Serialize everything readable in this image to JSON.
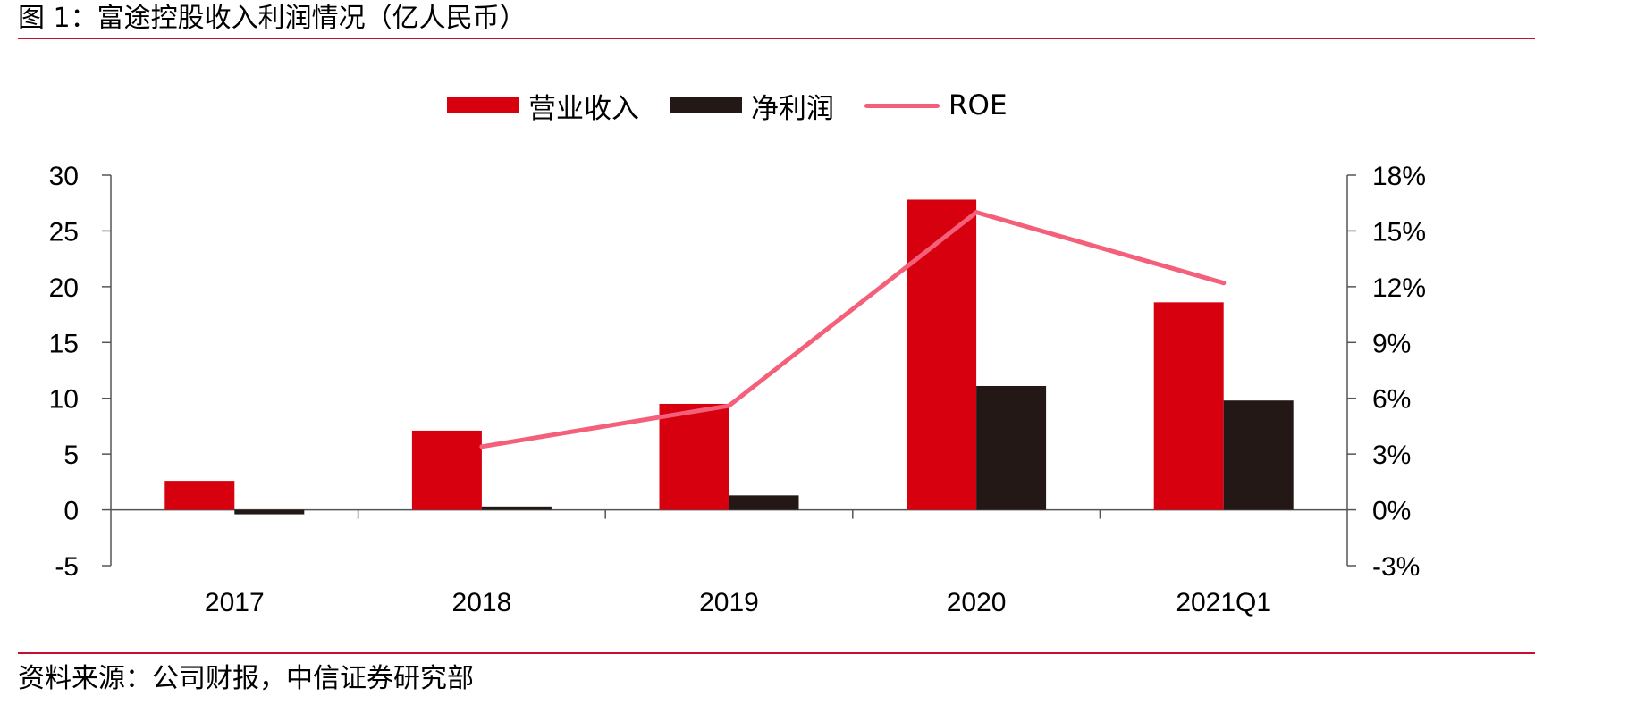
{
  "header": {
    "title": "图 1：富途控股收入利润情况（亿人民币）"
  },
  "footer": {
    "source": "资料来源：公司财报，中信证券研究部"
  },
  "colors": {
    "accent_rule": "#c8102e",
    "revenue": "#d7000f",
    "net_profit": "#231815",
    "roe": "#f4607a"
  },
  "chart_data": {
    "type": "bar",
    "title": "",
    "categories": [
      "2017",
      "2018",
      "2019",
      "2020",
      "2021Q1"
    ],
    "series": [
      {
        "name": "营业收入",
        "type": "bar",
        "axis": "left",
        "color": "#d7000f",
        "values": [
          2.6,
          7.1,
          9.5,
          27.8,
          18.6
        ]
      },
      {
        "name": "净利润",
        "type": "bar",
        "axis": "left",
        "color": "#231815",
        "values": [
          -0.4,
          0.3,
          1.3,
          11.1,
          9.8
        ]
      },
      {
        "name": "ROE",
        "type": "line",
        "axis": "right",
        "color": "#f4607a",
        "values": [
          null,
          3.4,
          5.6,
          16.0,
          12.2
        ]
      }
    ],
    "y_left": {
      "label": "",
      "range": [
        -5,
        30
      ],
      "ticks": [
        "30",
        "25",
        "20",
        "15",
        "10",
        "5",
        "0",
        "-5"
      ],
      "tick_values": [
        30,
        25,
        20,
        15,
        10,
        5,
        0,
        -5
      ]
    },
    "y_right": {
      "label": "",
      "range": [
        -3,
        18
      ],
      "unit": "%",
      "ticks": [
        "18%",
        "15%",
        "12%",
        "9%",
        "6%",
        "3%",
        "0%",
        "-3%"
      ],
      "tick_values": [
        18,
        15,
        12,
        9,
        6,
        3,
        0,
        -3
      ]
    },
    "legend_position": "top-center",
    "grid": false
  }
}
